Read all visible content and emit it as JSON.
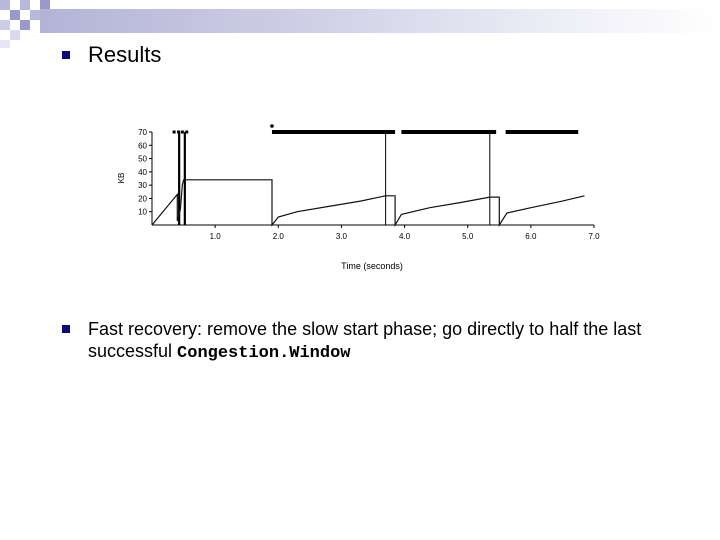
{
  "slide": {
    "heading": "Results",
    "body_prefix": "Fast recovery: remove the slow start phase; go directly to half the last successful ",
    "body_code": "Congestion.Window"
  },
  "chart_data": {
    "type": "line",
    "title": "",
    "xlabel": "Time (seconds)",
    "ylabel": "KB",
    "xlim": [
      0,
      7.0
    ],
    "ylim": [
      0,
      70
    ],
    "x_ticks": [
      "1.0",
      "2.0",
      "3.0",
      "4.0",
      "5.0",
      "6.0",
      "7.0"
    ],
    "y_ticks": [
      "10",
      "20",
      "30",
      "40",
      "50",
      "60",
      "70"
    ],
    "series": [
      {
        "values": [
          [
            0.0,
            0
          ],
          [
            0.4,
            23
          ],
          [
            0.4,
            3
          ],
          [
            0.45,
            12
          ],
          [
            0.48,
            30
          ],
          [
            0.5,
            34
          ],
          [
            1.9,
            34
          ],
          [
            1.9,
            0
          ],
          [
            2.0,
            6
          ],
          [
            2.3,
            10
          ],
          [
            2.8,
            14
          ],
          [
            3.3,
            18
          ],
          [
            3.7,
            22
          ],
          [
            3.85,
            22
          ],
          [
            3.85,
            0
          ],
          [
            3.95,
            8
          ],
          [
            4.4,
            13
          ],
          [
            4.9,
            17
          ],
          [
            5.35,
            21
          ],
          [
            5.5,
            21
          ],
          [
            5.5,
            0
          ],
          [
            5.62,
            9
          ],
          [
            6.0,
            13
          ],
          [
            6.5,
            18
          ],
          [
            6.85,
            22
          ]
        ]
      }
    ],
    "timeouts_x": [
      0.43,
      0.52,
      3.7,
      5.35
    ],
    "send_bars": [
      [
        1.9,
        3.85
      ],
      [
        3.95,
        5.45
      ],
      [
        5.6,
        6.75
      ]
    ]
  }
}
